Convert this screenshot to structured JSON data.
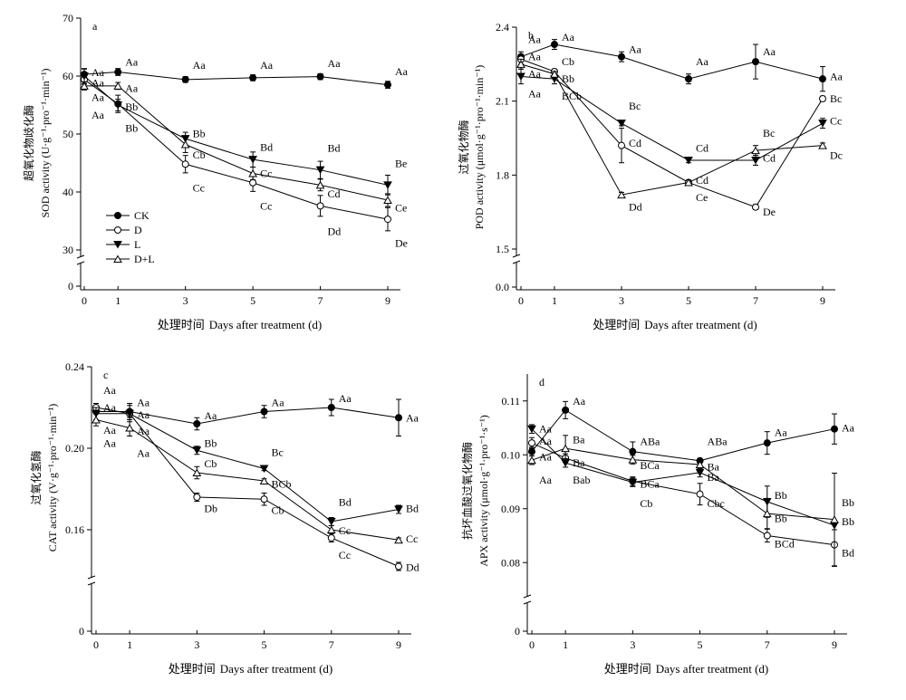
{
  "figure": {
    "x_label_cn": "处理时间",
    "x_label_en": "Days after treatment (d)"
  },
  "legend": [
    {
      "name": "CK",
      "marker": "filled-circle"
    },
    {
      "name": "D",
      "marker": "open-circle"
    },
    {
      "name": "L",
      "marker": "filled-triangle-down"
    },
    {
      "name": "D+L",
      "marker": "open-triangle-up"
    }
  ],
  "chart_data": [
    {
      "panel": "a",
      "type": "line",
      "ylabel_cn": "超氧化物歧化酶",
      "ylabel_en": "SOD activity (U·g⁻¹·pro⁻¹·min⁻¹)",
      "x": [
        0,
        1,
        3,
        5,
        7,
        9
      ],
      "ylim": [
        30,
        70
      ],
      "yticks": [
        30,
        40,
        50,
        60,
        70
      ],
      "y_axis_break": true,
      "y_zero_label": "0",
      "series": [
        {
          "name": "CK",
          "values": [
            60.3,
            60.7,
            59.4,
            59.7,
            59.9,
            58.5
          ],
          "errors": [
            0.9,
            0.6,
            0.5,
            0.5,
            0.5,
            0.6
          ]
        },
        {
          "name": "D",
          "values": [
            59.4,
            55.2,
            44.8,
            41.6,
            37.6,
            35.3
          ],
          "errors": [
            0.8,
            1.5,
            1.5,
            1.5,
            1.8,
            2.0
          ]
        },
        {
          "name": "L",
          "values": [
            60.0,
            55.0,
            49.2,
            45.6,
            43.8,
            41.2
          ],
          "errors": [
            1.3,
            1.0,
            1.1,
            1.3,
            1.5,
            1.7
          ]
        },
        {
          "name": "D+L",
          "values": [
            58.3,
            58.3,
            48.2,
            43.2,
            41.2,
            38.6
          ],
          "errors": [
            0.7,
            0.6,
            1.4,
            1.1,
            1.0,
            1.1
          ]
        }
      ],
      "annotations": [
        {
          "text": "Aa",
          "x": 0,
          "y": 60.6
        },
        {
          "text": "Aa",
          "x": 0,
          "y": 58.8
        },
        {
          "text": "Aa",
          "x": 0,
          "y": 56.3
        },
        {
          "text": "Aa",
          "x": 0,
          "y": 53.3
        },
        {
          "text": "Aa",
          "x": 1,
          "y": 62.4
        },
        {
          "text": "Aa",
          "x": 1,
          "y": 57.9
        },
        {
          "text": "Bb",
          "x": 1,
          "y": 54.7
        },
        {
          "text": "Bb",
          "x": 1,
          "y": 51.0
        },
        {
          "text": "Aa",
          "x": 3,
          "y": 61.9
        },
        {
          "text": "Bb",
          "x": 3,
          "y": 50.1
        },
        {
          "text": "Cb",
          "x": 3,
          "y": 46.4
        },
        {
          "text": "Cc",
          "x": 3,
          "y": 40.7
        },
        {
          "text": "Aa",
          "x": 5,
          "y": 61.9
        },
        {
          "text": "Bd",
          "x": 5,
          "y": 47.7
        },
        {
          "text": "Cc",
          "x": 5,
          "y": 43.2
        },
        {
          "text": "Cc",
          "x": 5,
          "y": 37.6
        },
        {
          "text": "Aa",
          "x": 7,
          "y": 62.2
        },
        {
          "text": "Bd",
          "x": 7,
          "y": 47.6
        },
        {
          "text": "Cd",
          "x": 7,
          "y": 39.7
        },
        {
          "text": "Dd",
          "x": 7,
          "y": 33.2
        },
        {
          "text": "Aa",
          "x": 9,
          "y": 60.8
        },
        {
          "text": "Be",
          "x": 9,
          "y": 44.9
        },
        {
          "text": "Ce",
          "x": 9,
          "y": 37.3
        },
        {
          "text": "De",
          "x": 9,
          "y": 31.2
        }
      ]
    },
    {
      "panel": "b",
      "type": "line",
      "ylabel_cn": "过氧化物酶",
      "ylabel_en": "POD activity (μmol·g⁻¹·pro⁻¹·min⁻¹)",
      "x": [
        0,
        1,
        3,
        5,
        7,
        9
      ],
      "ylim": [
        1.5,
        2.4
      ],
      "yticks": [
        1.5,
        1.8,
        2.1,
        2.4
      ],
      "y_axis_break": true,
      "y_zero_label": "0.0",
      "series": [
        {
          "name": "CK",
          "values": [
            2.28,
            2.33,
            2.28,
            2.19,
            2.26,
            2.19
          ],
          "errors": [
            0.02,
            0.02,
            0.02,
            0.02,
            0.07,
            0.05
          ]
        },
        {
          "name": "D",
          "values": [
            2.27,
            2.22,
            1.92,
            1.77,
            1.67,
            2.11
          ],
          "errors": [
            0.02,
            0.01,
            0.07,
            0.01,
            0.01,
            0.01
          ]
        },
        {
          "name": "L",
          "values": [
            2.2,
            2.19,
            2.01,
            1.86,
            1.86,
            2.01
          ],
          "errors": [
            0.03,
            0.02,
            0.01,
            0.01,
            0.02,
            0.02
          ]
        },
        {
          "name": "D+L",
          "values": [
            2.25,
            2.21,
            1.72,
            1.77,
            1.9,
            1.92
          ],
          "errors": [
            0.02,
            0.01,
            0.01,
            0.01,
            0.02,
            0.01
          ]
        }
      ],
      "annotations": [
        {
          "text": "Aa",
          "x": 0,
          "y": 2.35
        },
        {
          "text": "Aa",
          "x": 0,
          "y": 2.28
        },
        {
          "text": "Aa",
          "x": 0,
          "y": 2.21
        },
        {
          "text": "Aa",
          "x": 0,
          "y": 2.13
        },
        {
          "text": "Aa",
          "x": 1,
          "y": 2.36
        },
        {
          "text": "Cb",
          "x": 1,
          "y": 2.26
        },
        {
          "text": "Bb",
          "x": 1,
          "y": 2.19
        },
        {
          "text": "BCb",
          "x": 1,
          "y": 2.12
        },
        {
          "text": "Aa",
          "x": 3,
          "y": 2.31
        },
        {
          "text": "Bc",
          "x": 3,
          "y": 2.08
        },
        {
          "text": "Cd",
          "x": 3,
          "y": 1.93
        },
        {
          "text": "Dd",
          "x": 3,
          "y": 1.67
        },
        {
          "text": "Aa",
          "x": 5,
          "y": 2.26
        },
        {
          "text": "Cd",
          "x": 5,
          "y": 1.91
        },
        {
          "text": "Cd",
          "x": 5,
          "y": 1.78
        },
        {
          "text": "Ce",
          "x": 5,
          "y": 1.71
        },
        {
          "text": "Aa",
          "x": 7,
          "y": 2.3
        },
        {
          "text": "Bc",
          "x": 7,
          "y": 1.97
        },
        {
          "text": "Cd",
          "x": 7,
          "y": 1.87
        },
        {
          "text": "De",
          "x": 7,
          "y": 1.65
        },
        {
          "text": "Aa",
          "x": 9,
          "y": 2.2
        },
        {
          "text": "Bc",
          "x": 9,
          "y": 2.11
        },
        {
          "text": "Cc",
          "x": 9,
          "y": 2.02
        },
        {
          "text": "Dc",
          "x": 9,
          "y": 1.88
        }
      ]
    },
    {
      "panel": "c",
      "type": "line",
      "ylabel_cn": "过氧化氢酶",
      "ylabel_en": "CAT activity (V·g⁻¹·pro⁻¹·min⁻¹)",
      "x": [
        0,
        1,
        3,
        5,
        7,
        9
      ],
      "ylim": [
        0.14,
        0.24
      ],
      "yticks": [
        0.16,
        0.2,
        0.24
      ],
      "y_axis_break": true,
      "y_zero_label": "0",
      "series": [
        {
          "name": "CK",
          "values": [
            0.218,
            0.218,
            0.212,
            0.218,
            0.22,
            0.215
          ],
          "errors": [
            0.004,
            0.004,
            0.003,
            0.003,
            0.004,
            0.009
          ]
        },
        {
          "name": "D",
          "values": [
            0.22,
            0.217,
            0.176,
            0.175,
            0.156,
            0.142
          ],
          "errors": [
            0.002,
            0.002,
            0.002,
            0.003,
            0.002,
            0.002
          ]
        },
        {
          "name": "L",
          "values": [
            0.217,
            0.217,
            0.199,
            0.19,
            0.164,
            0.17
          ],
          "errors": [
            0.003,
            0.004,
            0.002,
            0.001,
            0.002,
            0.002
          ]
        },
        {
          "name": "D+L",
          "values": [
            0.214,
            0.21,
            0.188,
            0.184,
            0.16,
            0.155
          ],
          "errors": [
            0.003,
            0.004,
            0.003,
            0.001,
            0.002,
            0.001
          ]
        }
      ],
      "annotations": [
        {
          "text": "Aa",
          "x": 0,
          "y": 0.2285
        },
        {
          "text": "Aa",
          "x": 0,
          "y": 0.22
        },
        {
          "text": "Aa",
          "x": 0,
          "y": 0.209
        },
        {
          "text": "Aa",
          "x": 0,
          "y": 0.2025
        },
        {
          "text": "Aa",
          "x": 1,
          "y": 0.2225
        },
        {
          "text": "Aa",
          "x": 1,
          "y": 0.2165
        },
        {
          "text": "Aa",
          "x": 1,
          "y": 0.2085
        },
        {
          "text": "Aa",
          "x": 1,
          "y": 0.1975
        },
        {
          "text": "Aa",
          "x": 3,
          "y": 0.216
        },
        {
          "text": "Bb",
          "x": 3,
          "y": 0.2025
        },
        {
          "text": "Cb",
          "x": 3,
          "y": 0.1925
        },
        {
          "text": "Db",
          "x": 3,
          "y": 0.1705
        },
        {
          "text": "Aa",
          "x": 5,
          "y": 0.2225
        },
        {
          "text": "Bc",
          "x": 5,
          "y": 0.198
        },
        {
          "text": "BCb",
          "x": 5,
          "y": 0.1825
        },
        {
          "text": "Cb",
          "x": 5,
          "y": 0.1695
        },
        {
          "text": "Aa",
          "x": 7,
          "y": 0.2245
        },
        {
          "text": "Bd",
          "x": 7,
          "y": 0.1735
        },
        {
          "text": "Cc",
          "x": 7,
          "y": 0.1595
        },
        {
          "text": "Cc",
          "x": 7,
          "y": 0.1475
        },
        {
          "text": "Aa",
          "x": 9,
          "y": 0.215
        },
        {
          "text": "Bd",
          "x": 9,
          "y": 0.1705
        },
        {
          "text": "Cc",
          "x": 9,
          "y": 0.1555
        },
        {
          "text": "Dd",
          "x": 9,
          "y": 0.1415
        }
      ]
    },
    {
      "panel": "d",
      "type": "line",
      "ylabel_cn": "抗坏血酸过氧化物酶",
      "ylabel_en": "APX activity (μmol·g⁻¹·pro⁻¹·s⁻¹)",
      "x": [
        0,
        1,
        3,
        5,
        7,
        9
      ],
      "ylim": [
        0.075,
        0.115
      ],
      "yticks": [
        0.08,
        0.09,
        0.1,
        0.11
      ],
      "y_axis_break": true,
      "y_zero_label": "0",
      "series": [
        {
          "name": "CK",
          "values": [
            0.1006,
            0.1083,
            0.1006,
            0.0989,
            0.1022,
            0.1048
          ],
          "errors": [
            0.0008,
            0.0016,
            0.0018,
            0.0004,
            0.0021,
            0.0028
          ]
        },
        {
          "name": "D",
          "values": [
            0.1022,
            0.0994,
            0.0951,
            0.0927,
            0.085,
            0.0833
          ],
          "errors": [
            0.001,
            0.0008,
            0.0008,
            0.002,
            0.0012,
            0.004
          ]
        },
        {
          "name": "L",
          "values": [
            0.1048,
            0.0985,
            0.0949,
            0.0967,
            0.0913,
            0.0869
          ],
          "errors": [
            0.0008,
            0.0008,
            0.0008,
            0.0008,
            0.0029,
            0.0008
          ]
        },
        {
          "name": "D+L",
          "values": [
            0.099,
            0.1012,
            0.0991,
            0.0982,
            0.0891,
            0.088
          ],
          "errors": [
            0.0008,
            0.0024,
            0.0008,
            0.0008,
            0.0028,
            0.0086
          ]
        }
      ],
      "annotations": [
        {
          "text": "Aa",
          "x": 0,
          "y": 0.1048
        },
        {
          "text": "Aa",
          "x": 0,
          "y": 0.1026
        },
        {
          "text": "Aa",
          "x": 0,
          "y": 0.0996
        },
        {
          "text": "Aa",
          "x": 0,
          "y": 0.0953
        },
        {
          "text": "Aa",
          "x": 1,
          "y": 0.11
        },
        {
          "text": "Ba",
          "x": 1,
          "y": 0.1028
        },
        {
          "text": "Ba",
          "x": 1,
          "y": 0.0985
        },
        {
          "text": "Bab",
          "x": 1,
          "y": 0.0953
        },
        {
          "text": "ABa",
          "x": 3,
          "y": 0.1025
        },
        {
          "text": "BCa",
          "x": 3,
          "y": 0.098
        },
        {
          "text": "BCa",
          "x": 3,
          "y": 0.0946
        },
        {
          "text": "Cb",
          "x": 3,
          "y": 0.091
        },
        {
          "text": "ABa",
          "x": 5,
          "y": 0.1025
        },
        {
          "text": "Ba",
          "x": 5,
          "y": 0.0978
        },
        {
          "text": "Ba",
          "x": 5,
          "y": 0.0958
        },
        {
          "text": "Cbc",
          "x": 5,
          "y": 0.091
        },
        {
          "text": "Aa",
          "x": 7,
          "y": 0.1042
        },
        {
          "text": "Bb",
          "x": 7,
          "y": 0.0925
        },
        {
          "text": "Bb",
          "x": 7,
          "y": 0.0882
        },
        {
          "text": "BCd",
          "x": 7,
          "y": 0.0835
        },
        {
          "text": "Aa",
          "x": 9,
          "y": 0.105
        },
        {
          "text": "Bb",
          "x": 9,
          "y": 0.0911
        },
        {
          "text": "Bb",
          "x": 9,
          "y": 0.0876
        },
        {
          "text": "Bd",
          "x": 9,
          "y": 0.0818
        }
      ]
    }
  ]
}
